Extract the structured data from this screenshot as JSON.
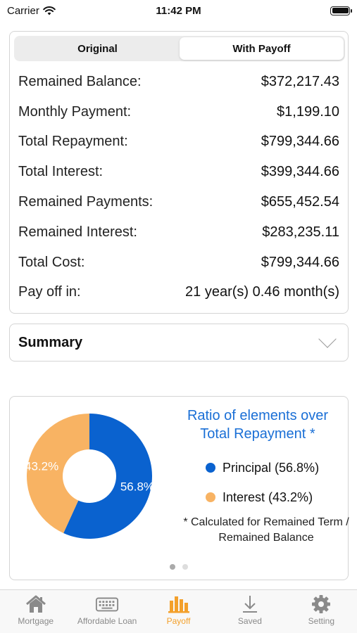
{
  "status_bar": {
    "carrier": "Carrier",
    "time": "11:42 PM"
  },
  "segmented": {
    "options": [
      "Original",
      "With Payoff"
    ],
    "selected": "With Payoff"
  },
  "results": [
    {
      "label": "Remained Balance:",
      "value": "$372,217.43"
    },
    {
      "label": "Monthly Payment:",
      "value": "$1,199.10"
    },
    {
      "label": "Total Repayment:",
      "value": "$799,344.66"
    },
    {
      "label": "Total Interest:",
      "value": "$399,344.66"
    },
    {
      "label": "Remained Payments:",
      "value": "$655,452.54"
    },
    {
      "label": "Remained Interest:",
      "value": "$283,235.11"
    },
    {
      "label": "Total Cost:",
      "value": "$799,344.66"
    },
    {
      "label": "Pay off in:",
      "value": "21 year(s) 0.46 month(s)"
    }
  ],
  "summary": {
    "title": "Summary",
    "icon": "chevron-down-icon"
  },
  "chart_data": {
    "type": "pie",
    "title": "Ratio of elements over Total Repayment *",
    "slices": [
      {
        "name": "Principal (56.8%)",
        "value": 56.8,
        "label": "56.8%",
        "color": "#0a62cf"
      },
      {
        "name": "Interest (43.2%)",
        "value": 43.2,
        "label": "43.2%",
        "color": "#f8b363"
      }
    ],
    "note": "* Calculated for Remained Term / Remained Balance",
    "donut": true
  },
  "pager": {
    "pages": 2,
    "current": 1
  },
  "tabbar": {
    "selected": "Payoff",
    "tabs": [
      {
        "label": "Mortgage",
        "icon": "house-icon"
      },
      {
        "label": "Affordable Loan",
        "icon": "keyboard-icon"
      },
      {
        "label": "Payoff",
        "icon": "bar-chart-icon"
      },
      {
        "label": "Saved",
        "icon": "download-arrow-icon"
      },
      {
        "label": "Setting",
        "icon": "gear-icon"
      }
    ]
  },
  "colors": {
    "accent_blue": "#1a6fd6",
    "tab_active": "#f3a02b",
    "tab_inactive": "#8a8a8a"
  }
}
